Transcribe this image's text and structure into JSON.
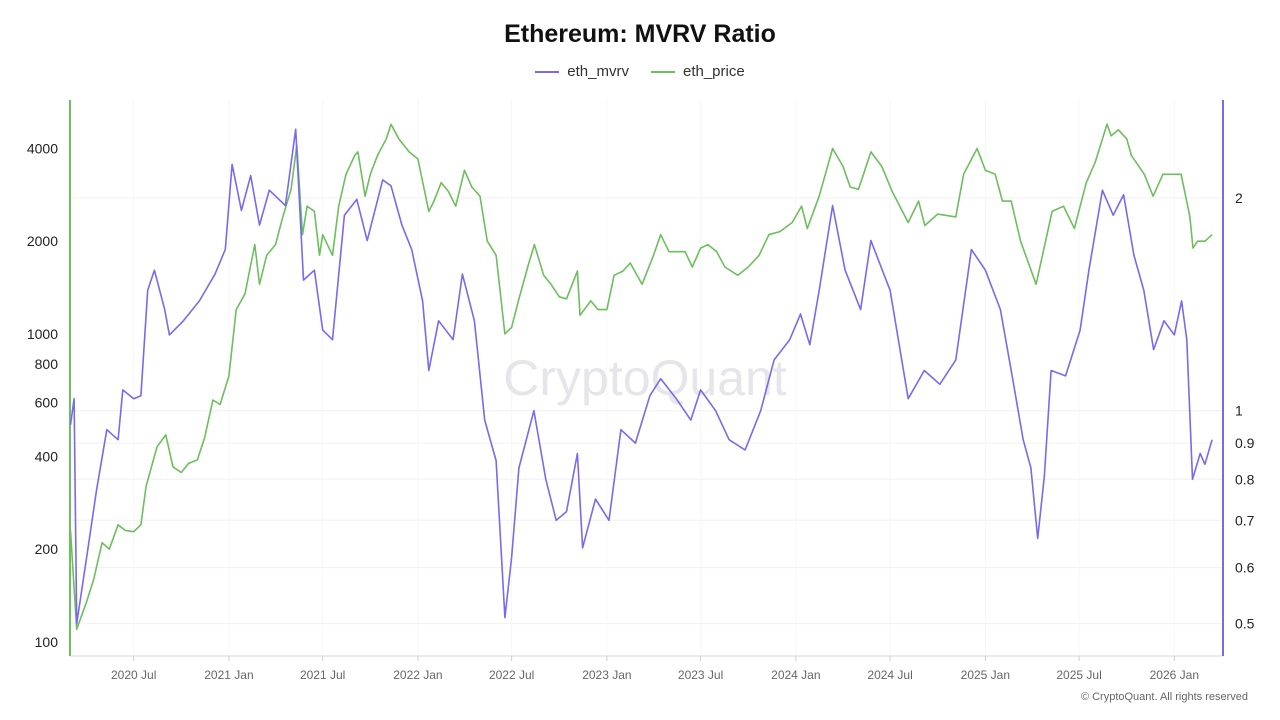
{
  "chart_data": {
    "type": "line",
    "title": "Ethereum: MVRV Ratio",
    "xlabel": "",
    "ylabel_left": "",
    "ylabel_right": "",
    "x_type": "date",
    "xlim": [
      "2020-02-29",
      "2026-04-05"
    ],
    "x_ticks": [
      {
        "date": "2020-07-01",
        "label": "2020 Jul"
      },
      {
        "date": "2021-01-01",
        "label": "2021 Jan"
      },
      {
        "date": "2021-07-01",
        "label": "2021 Jul"
      },
      {
        "date": "2022-01-01",
        "label": "2022 Jan"
      },
      {
        "date": "2022-07-01",
        "label": "2022 Jul"
      },
      {
        "date": "2023-01-01",
        "label": "2023 Jan"
      },
      {
        "date": "2023-07-01",
        "label": "2023 Jul"
      },
      {
        "date": "2024-01-01",
        "label": "2024 Jan"
      },
      {
        "date": "2024-07-01",
        "label": "2024 Jul"
      },
      {
        "date": "2025-01-01",
        "label": "2025 Jan"
      },
      {
        "date": "2025-07-01",
        "label": "2025 Jul"
      },
      {
        "date": "2026-01-01",
        "label": "2026 Jan"
      }
    ],
    "left_axis": {
      "scale": "log",
      "ylim": [
        90,
        5750
      ],
      "ticks": [
        100,
        200,
        400,
        600,
        800,
        1000,
        2000,
        4000
      ],
      "color": "#6cbf5c"
    },
    "right_axis": {
      "scale": "log",
      "ylim": [
        0.45,
        2.75
      ],
      "ticks": [
        0.5,
        0.6,
        0.7,
        0.8,
        0.9,
        1,
        2
      ],
      "color": "#7b68ee"
    },
    "grid": true,
    "legend_placement": "top-center",
    "series": [
      {
        "name": "eth_mvrv",
        "axis": "right",
        "color": "#7b68ee",
        "points": [
          [
            "2020-03-01",
            0.955
          ],
          [
            "2020-03-08",
            1.04
          ],
          [
            "2020-03-13",
            0.5
          ],
          [
            "2020-04-01",
            0.62
          ],
          [
            "2020-04-20",
            0.77
          ],
          [
            "2020-05-10",
            0.94
          ],
          [
            "2020-06-01",
            0.91
          ],
          [
            "2020-06-10",
            1.07
          ],
          [
            "2020-07-01",
            1.04
          ],
          [
            "2020-07-15",
            1.05
          ],
          [
            "2020-07-28",
            1.48
          ],
          [
            "2020-08-10",
            1.58
          ],
          [
            "2020-08-30",
            1.39
          ],
          [
            "2020-09-08",
            1.28
          ],
          [
            "2020-10-05",
            1.34
          ],
          [
            "2020-11-05",
            1.43
          ],
          [
            "2020-12-05",
            1.56
          ],
          [
            "2020-12-25",
            1.69
          ],
          [
            "2021-01-07",
            2.23
          ],
          [
            "2021-01-25",
            1.92
          ],
          [
            "2021-02-12",
            2.15
          ],
          [
            "2021-03-01",
            1.83
          ],
          [
            "2021-03-20",
            2.05
          ],
          [
            "2021-04-20",
            1.95
          ],
          [
            "2021-05-10",
            2.5
          ],
          [
            "2021-05-25",
            1.53
          ],
          [
            "2021-06-15",
            1.58
          ],
          [
            "2021-07-01",
            1.3
          ],
          [
            "2021-07-20",
            1.26
          ],
          [
            "2021-08-12",
            1.89
          ],
          [
            "2021-09-05",
            1.99
          ],
          [
            "2021-09-25",
            1.74
          ],
          [
            "2021-10-25",
            2.12
          ],
          [
            "2021-11-10",
            2.08
          ],
          [
            "2021-12-01",
            1.83
          ],
          [
            "2021-12-20",
            1.69
          ],
          [
            "2022-01-10",
            1.43
          ],
          [
            "2022-01-22",
            1.14
          ],
          [
            "2022-02-10",
            1.34
          ],
          [
            "2022-03-10",
            1.26
          ],
          [
            "2022-03-28",
            1.56
          ],
          [
            "2022-04-20",
            1.34
          ],
          [
            "2022-05-10",
            0.97
          ],
          [
            "2022-06-01",
            0.85
          ],
          [
            "2022-06-18",
            0.51
          ],
          [
            "2022-07-01",
            0.62
          ],
          [
            "2022-07-15",
            0.83
          ],
          [
            "2022-08-13",
            1.0
          ],
          [
            "2022-09-05",
            0.8
          ],
          [
            "2022-09-25",
            0.7
          ],
          [
            "2022-10-15",
            0.72
          ],
          [
            "2022-11-05",
            0.87
          ],
          [
            "2022-11-15",
            0.64
          ],
          [
            "2022-12-10",
            0.75
          ],
          [
            "2023-01-05",
            0.7
          ],
          [
            "2023-01-28",
            0.94
          ],
          [
            "2023-02-25",
            0.9
          ],
          [
            "2023-03-25",
            1.05
          ],
          [
            "2023-04-15",
            1.11
          ],
          [
            "2023-05-15",
            1.04
          ],
          [
            "2023-06-12",
            0.97
          ],
          [
            "2023-07-01",
            1.07
          ],
          [
            "2023-07-30",
            1.0
          ],
          [
            "2023-08-25",
            0.91
          ],
          [
            "2023-09-25",
            0.88
          ],
          [
            "2023-10-25",
            1.0
          ],
          [
            "2023-11-20",
            1.18
          ],
          [
            "2023-12-20",
            1.26
          ],
          [
            "2024-01-10",
            1.37
          ],
          [
            "2024-01-28",
            1.24
          ],
          [
            "2024-02-15",
            1.48
          ],
          [
            "2024-03-12",
            1.95
          ],
          [
            "2024-04-05",
            1.58
          ],
          [
            "2024-05-05",
            1.39
          ],
          [
            "2024-05-25",
            1.74
          ],
          [
            "2024-07-01",
            1.48
          ],
          [
            "2024-08-05",
            1.04
          ],
          [
            "2024-09-05",
            1.14
          ],
          [
            "2024-10-05",
            1.09
          ],
          [
            "2024-11-05",
            1.18
          ],
          [
            "2024-12-05",
            1.69
          ],
          [
            "2025-01-01",
            1.58
          ],
          [
            "2025-01-30",
            1.39
          ],
          [
            "2025-02-20",
            1.14
          ],
          [
            "2025-03-15",
            0.91
          ],
          [
            "2025-03-30",
            0.83
          ],
          [
            "2025-04-12",
            0.66
          ],
          [
            "2025-04-25",
            0.81
          ],
          [
            "2025-05-08",
            1.14
          ],
          [
            "2025-06-05",
            1.12
          ],
          [
            "2025-07-03",
            1.3
          ],
          [
            "2025-07-20",
            1.58
          ],
          [
            "2025-08-15",
            2.05
          ],
          [
            "2025-09-05",
            1.89
          ],
          [
            "2025-09-25",
            2.02
          ],
          [
            "2025-10-15",
            1.66
          ],
          [
            "2025-11-03",
            1.48
          ],
          [
            "2025-11-22",
            1.22
          ],
          [
            "2025-12-12",
            1.34
          ],
          [
            "2026-01-01",
            1.28
          ],
          [
            "2026-01-15",
            1.43
          ],
          [
            "2026-01-25",
            1.26
          ],
          [
            "2026-02-05",
            0.8
          ],
          [
            "2026-02-20",
            0.87
          ],
          [
            "2026-03-01",
            0.84
          ],
          [
            "2026-03-15",
            0.91
          ]
        ]
      },
      {
        "name": "eth_price",
        "axis": "left",
        "color": "#6cbf5c",
        "points": [
          [
            "2020-03-01",
            230
          ],
          [
            "2020-03-13",
            110
          ],
          [
            "2020-04-01",
            135
          ],
          [
            "2020-04-15",
            160
          ],
          [
            "2020-05-01",
            210
          ],
          [
            "2020-05-15",
            200
          ],
          [
            "2020-06-01",
            240
          ],
          [
            "2020-06-15",
            230
          ],
          [
            "2020-07-01",
            228
          ],
          [
            "2020-07-15",
            240
          ],
          [
            "2020-07-25",
            320
          ],
          [
            "2020-08-15",
            430
          ],
          [
            "2020-09-01",
            470
          ],
          [
            "2020-09-15",
            370
          ],
          [
            "2020-10-01",
            355
          ],
          [
            "2020-10-15",
            380
          ],
          [
            "2020-11-01",
            390
          ],
          [
            "2020-11-15",
            460
          ],
          [
            "2020-12-01",
            610
          ],
          [
            "2020-12-15",
            590
          ],
          [
            "2021-01-01",
            730
          ],
          [
            "2021-01-15",
            1200
          ],
          [
            "2021-02-01",
            1350
          ],
          [
            "2021-02-20",
            1950
          ],
          [
            "2021-03-01",
            1450
          ],
          [
            "2021-03-15",
            1800
          ],
          [
            "2021-04-01",
            1950
          ],
          [
            "2021-04-15",
            2400
          ],
          [
            "2021-05-01",
            2950
          ],
          [
            "2021-05-12",
            4100
          ],
          [
            "2021-05-23",
            2100
          ],
          [
            "2021-06-01",
            2600
          ],
          [
            "2021-06-15",
            2500
          ],
          [
            "2021-06-25",
            1800
          ],
          [
            "2021-07-01",
            2100
          ],
          [
            "2021-07-20",
            1800
          ],
          [
            "2021-08-01",
            2600
          ],
          [
            "2021-08-15",
            3300
          ],
          [
            "2021-09-01",
            3800
          ],
          [
            "2021-09-07",
            3900
          ],
          [
            "2021-09-21",
            2800
          ],
          [
            "2021-10-01",
            3300
          ],
          [
            "2021-10-15",
            3800
          ],
          [
            "2021-11-01",
            4300
          ],
          [
            "2021-11-10",
            4800
          ],
          [
            "2021-11-25",
            4300
          ],
          [
            "2021-12-05",
            4100
          ],
          [
            "2021-12-15",
            3900
          ],
          [
            "2022-01-01",
            3700
          ],
          [
            "2022-01-22",
            2500
          ],
          [
            "2022-02-01",
            2700
          ],
          [
            "2022-02-15",
            3100
          ],
          [
            "2022-03-01",
            2900
          ],
          [
            "2022-03-15",
            2600
          ],
          [
            "2022-04-01",
            3400
          ],
          [
            "2022-04-15",
            3000
          ],
          [
            "2022-05-01",
            2800
          ],
          [
            "2022-05-15",
            2000
          ],
          [
            "2022-06-01",
            1800
          ],
          [
            "2022-06-18",
            1000
          ],
          [
            "2022-07-01",
            1050
          ],
          [
            "2022-07-15",
            1300
          ],
          [
            "2022-08-01",
            1650
          ],
          [
            "2022-08-14",
            1950
          ],
          [
            "2022-09-01",
            1550
          ],
          [
            "2022-09-15",
            1450
          ],
          [
            "2022-10-01",
            1320
          ],
          [
            "2022-10-15",
            1300
          ],
          [
            "2022-11-05",
            1600
          ],
          [
            "2022-11-10",
            1150
          ],
          [
            "2022-12-01",
            1280
          ],
          [
            "2022-12-15",
            1200
          ],
          [
            "2023-01-01",
            1200
          ],
          [
            "2023-01-15",
            1550
          ],
          [
            "2023-02-01",
            1600
          ],
          [
            "2023-02-15",
            1700
          ],
          [
            "2023-03-10",
            1450
          ],
          [
            "2023-04-01",
            1800
          ],
          [
            "2023-04-15",
            2100
          ],
          [
            "2023-05-01",
            1850
          ],
          [
            "2023-06-01",
            1850
          ],
          [
            "2023-06-15",
            1650
          ],
          [
            "2023-07-01",
            1900
          ],
          [
            "2023-07-15",
            1950
          ],
          [
            "2023-08-01",
            1850
          ],
          [
            "2023-08-17",
            1650
          ],
          [
            "2023-09-11",
            1550
          ],
          [
            "2023-10-01",
            1650
          ],
          [
            "2023-10-22",
            1800
          ],
          [
            "2023-11-10",
            2100
          ],
          [
            "2023-12-01",
            2150
          ],
          [
            "2023-12-25",
            2300
          ],
          [
            "2024-01-12",
            2600
          ],
          [
            "2024-01-23",
            2200
          ],
          [
            "2024-02-15",
            2800
          ],
          [
            "2024-03-12",
            4000
          ],
          [
            "2024-04-01",
            3500
          ],
          [
            "2024-04-15",
            3000
          ],
          [
            "2024-05-01",
            2950
          ],
          [
            "2024-05-25",
            3900
          ],
          [
            "2024-06-15",
            3500
          ],
          [
            "2024-07-05",
            2900
          ],
          [
            "2024-08-05",
            2300
          ],
          [
            "2024-08-25",
            2700
          ],
          [
            "2024-09-06",
            2250
          ],
          [
            "2024-10-01",
            2450
          ],
          [
            "2024-11-05",
            2400
          ],
          [
            "2024-11-20",
            3300
          ],
          [
            "2024-12-16",
            4000
          ],
          [
            "2025-01-01",
            3400
          ],
          [
            "2025-01-20",
            3300
          ],
          [
            "2025-02-03",
            2700
          ],
          [
            "2025-02-20",
            2700
          ],
          [
            "2025-03-10",
            2000
          ],
          [
            "2025-04-09",
            1450
          ],
          [
            "2025-05-10",
            2500
          ],
          [
            "2025-06-01",
            2600
          ],
          [
            "2025-06-22",
            2200
          ],
          [
            "2025-07-15",
            3100
          ],
          [
            "2025-08-01",
            3600
          ],
          [
            "2025-08-24",
            4800
          ],
          [
            "2025-09-01",
            4400
          ],
          [
            "2025-09-15",
            4600
          ],
          [
            "2025-10-01",
            4300
          ],
          [
            "2025-10-10",
            3800
          ],
          [
            "2025-11-04",
            3300
          ],
          [
            "2025-11-21",
            2800
          ],
          [
            "2025-12-10",
            3300
          ],
          [
            "2026-01-14",
            3300
          ],
          [
            "2026-01-31",
            2400
          ],
          [
            "2026-02-06",
            1900
          ],
          [
            "2026-02-15",
            2000
          ],
          [
            "2026-03-01",
            2000
          ],
          [
            "2026-03-15",
            2100
          ]
        ]
      }
    ]
  },
  "watermark": "CryptoQuant",
  "copyright": "© CryptoQuant. All rights reserved"
}
